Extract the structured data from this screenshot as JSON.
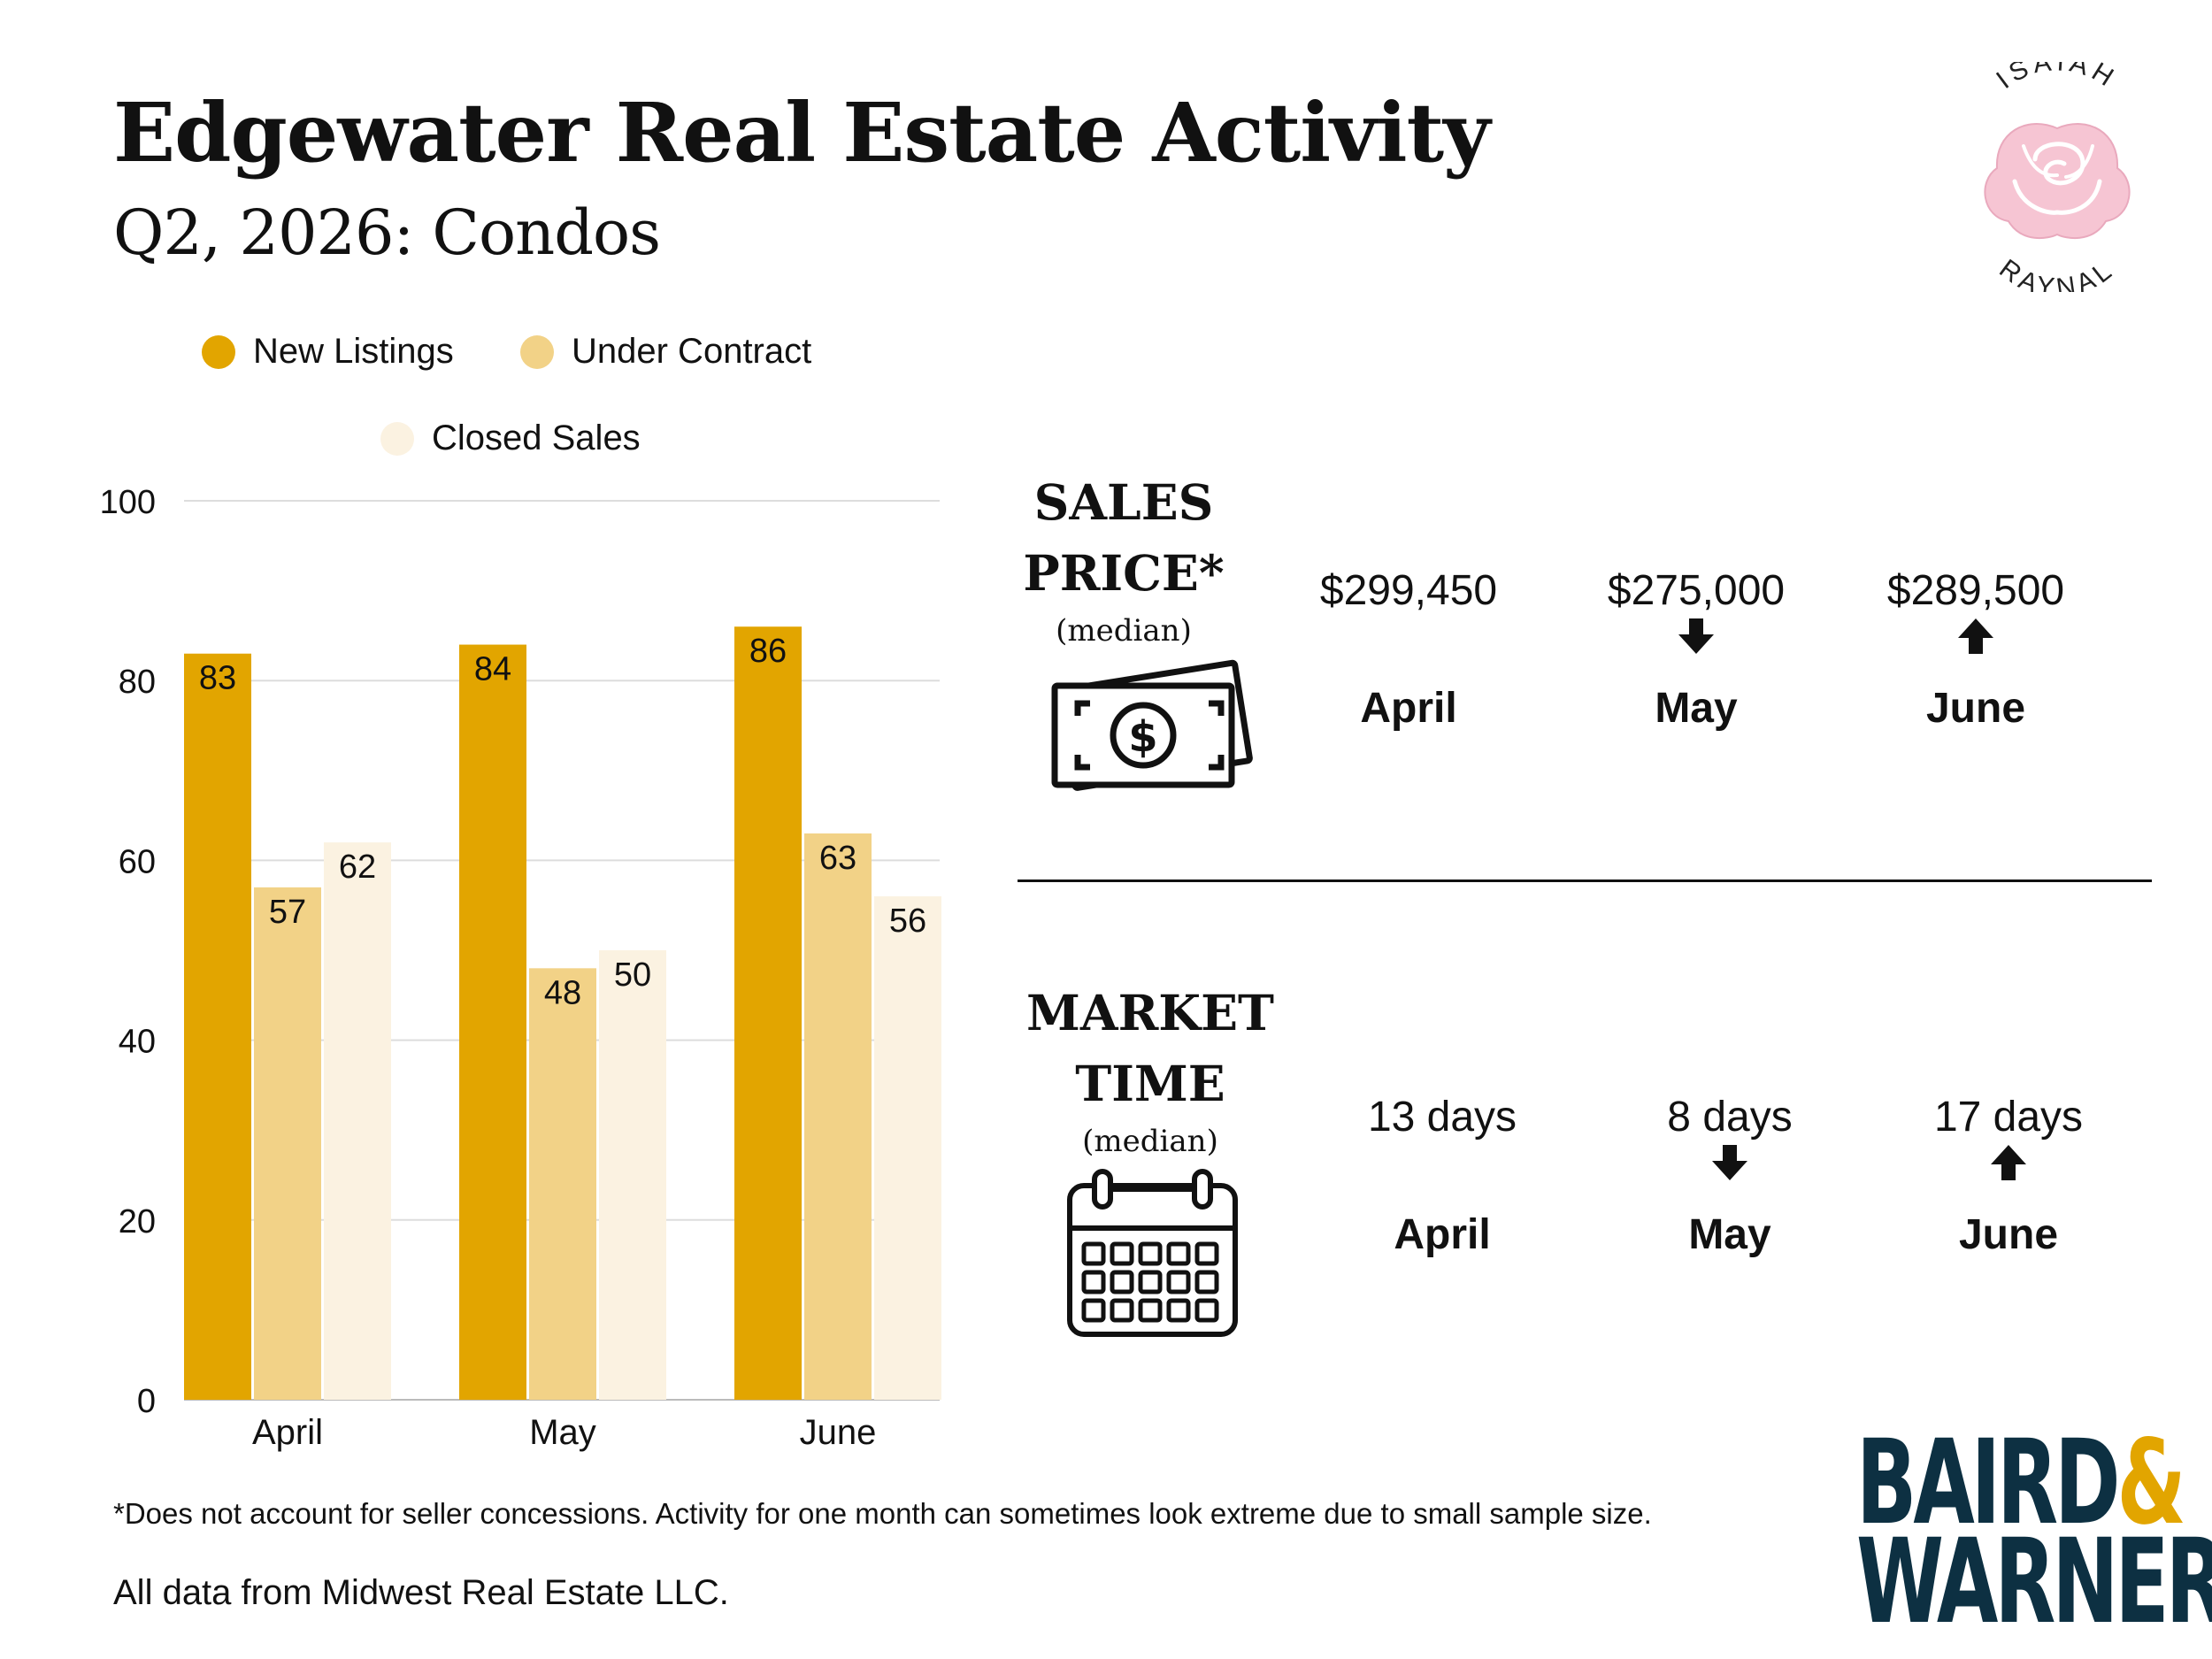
{
  "header": {
    "title": "Edgewater Real Estate Activity",
    "subtitle": "Q2, 2026: Condos"
  },
  "colors": {
    "new_listings": "#e2a500",
    "under_contract": "#f2d287",
    "closed_sales": "#fbf2e1",
    "navy": "#0d3042",
    "gold": "#e2a500",
    "rose": "#f6c5d3"
  },
  "chart_data": {
    "type": "bar",
    "categories": [
      "April",
      "May",
      "June"
    ],
    "series": [
      {
        "name": "New Listings",
        "values": [
          83,
          84,
          86
        ]
      },
      {
        "name": "Under Contract",
        "values": [
          57,
          48,
          63
        ]
      },
      {
        "name": "Closed Sales",
        "values": [
          62,
          50,
          56
        ]
      }
    ],
    "ylim": [
      0,
      100
    ],
    "yticks": [
      0,
      20,
      40,
      60,
      80,
      100
    ],
    "grid": true,
    "legend_position": "top",
    "data_labels": true
  },
  "sales_price": {
    "label_line1": "SALES",
    "label_line2": "PRICE*",
    "median_note": "(median)",
    "icon": "money-bill-icon",
    "months": [
      {
        "value": "$299,450",
        "month": "April",
        "trend": "none"
      },
      {
        "value": "$275,000",
        "month": "May",
        "trend": "down"
      },
      {
        "value": "$289,500",
        "month": "June",
        "trend": "up"
      }
    ]
  },
  "market_time": {
    "label_line1": "MARKET",
    "label_line2": "TIME",
    "median_note": "(median)",
    "icon": "calendar-icon",
    "months": [
      {
        "value": "13 days",
        "month": "April",
        "trend": "none"
      },
      {
        "value": "8 days",
        "month": "May",
        "trend": "down"
      },
      {
        "value": "17 days",
        "month": "June",
        "trend": "up"
      }
    ]
  },
  "footer": {
    "footnote": "*Does not account for seller concessions. Activity for one month can sometimes look extreme due to small sample size.",
    "source": "All data from Midwest Real Estate LLC."
  },
  "brand": {
    "agent_first": "ISAIAH",
    "agent_last": "RAYNAL",
    "company_line1": "BAIRD",
    "company_amp": "&",
    "company_line2": "WARNER"
  }
}
